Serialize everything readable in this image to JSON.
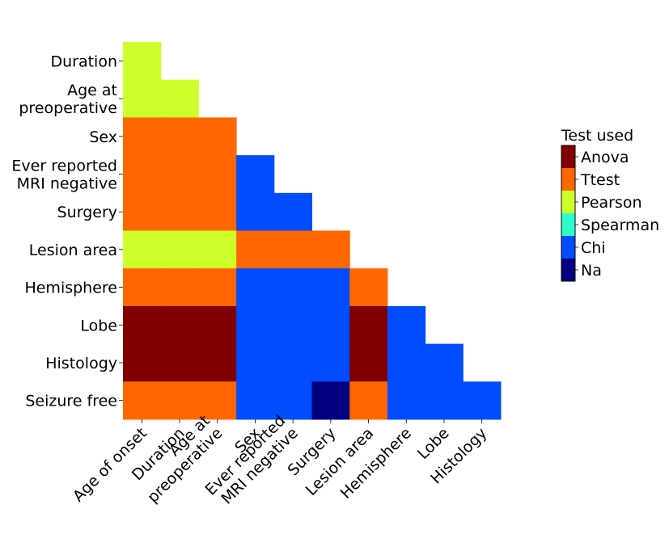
{
  "chart_data": {
    "type": "heatmap",
    "title": "",
    "xlabel": "",
    "ylabel": "",
    "x_labels": [
      "Age of onset",
      "Duration",
      "Age at preoperative",
      "Sex",
      "Ever reported MRI negative",
      "Surgery",
      "Lesion area",
      "Hemisphere",
      "Lobe",
      "Histology"
    ],
    "y_labels": [
      "Duration",
      "Age at preoperative",
      "Sex",
      "Ever reported MRI negative",
      "Surgery",
      "Lesion area",
      "Hemisphere",
      "Lobe",
      "Histology",
      "Seizure free"
    ],
    "legend": {
      "title": "Test used",
      "position": "right",
      "categories": [
        "Anova",
        "Ttest",
        "Pearson",
        "Spearman",
        "Chi",
        "Na"
      ],
      "colors": [
        "#800000",
        "#ff6600",
        "#ccff2a",
        "#2affcc",
        "#004cff",
        "#000080"
      ]
    },
    "matrix": [
      [
        "Pearson"
      ],
      [
        "Pearson",
        "Pearson"
      ],
      [
        "Ttest",
        "Ttest",
        "Ttest"
      ],
      [
        "Ttest",
        "Ttest",
        "Ttest",
        "Chi"
      ],
      [
        "Ttest",
        "Ttest",
        "Ttest",
        "Chi",
        "Chi"
      ],
      [
        "Pearson",
        "Pearson",
        "Pearson",
        "Ttest",
        "Ttest",
        "Ttest"
      ],
      [
        "Ttest",
        "Ttest",
        "Ttest",
        "Chi",
        "Chi",
        "Chi",
        "Ttest"
      ],
      [
        "Anova",
        "Anova",
        "Anova",
        "Chi",
        "Chi",
        "Chi",
        "Anova",
        "Chi"
      ],
      [
        "Anova",
        "Anova",
        "Anova",
        "Chi",
        "Chi",
        "Chi",
        "Anova",
        "Chi",
        "Chi"
      ],
      [
        "Ttest",
        "Ttest",
        "Ttest",
        "Chi",
        "Chi",
        "Na",
        "Ttest",
        "Chi",
        "Chi",
        "Chi"
      ]
    ]
  }
}
